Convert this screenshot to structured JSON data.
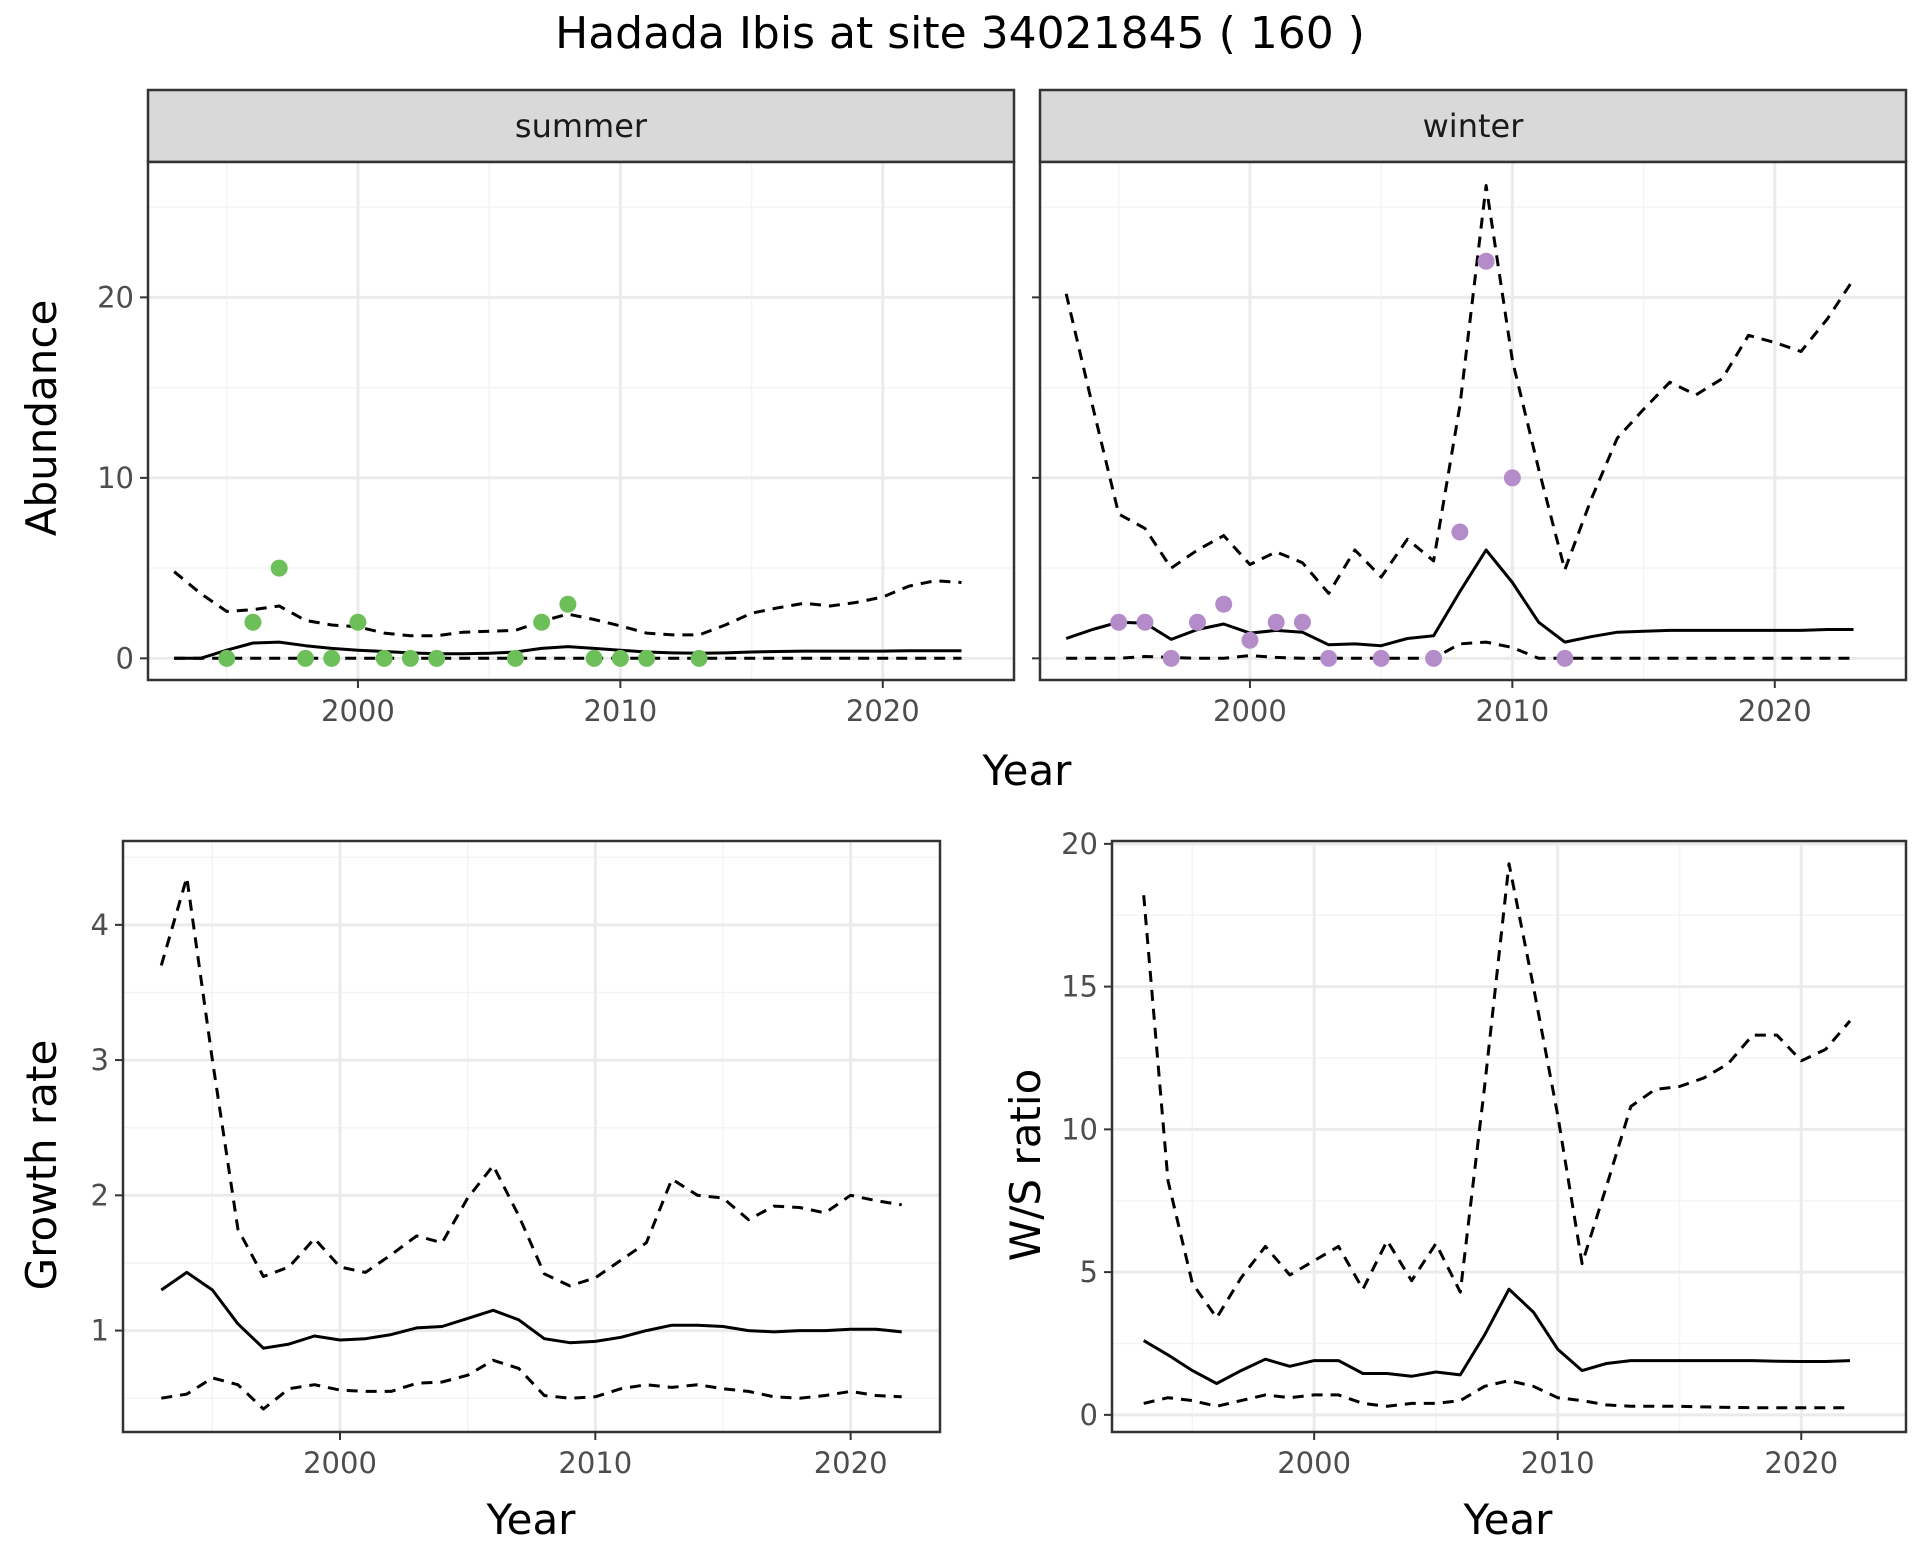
{
  "title": "Hadada Ibis at site 34021845 ( 160 )",
  "colors": {
    "summer_points": "#6dbf5a",
    "winter_points": "#b58cca",
    "lines": "#000000",
    "panel_border": "#333333",
    "strip_fill": "#d9d9d9",
    "grid_major": "#ebebeb",
    "grid_minor": "#f4f4f4"
  },
  "chart_data": [
    {
      "type": "line",
      "id": "abundance",
      "facet_label_summer": "summer",
      "facet_label_winter": "winter",
      "xlabel": "Year",
      "ylabel": "Abundance",
      "xlim": [
        1992,
        2025
      ],
      "ylim": [
        -1.2,
        27.5
      ],
      "xticks": [
        2000,
        2010,
        2020
      ],
      "yticks": [
        0,
        10,
        20
      ],
      "grid": true,
      "facets": [
        {
          "name": "summer",
          "points_color": "summer_points",
          "points": {
            "x": [
              1995,
              1996,
              1997,
              1998,
              1999,
              2000,
              2001,
              2002,
              2003,
              2006,
              2007,
              2008,
              2009,
              2010,
              2011,
              2013
            ],
            "y": [
              0,
              2,
              5,
              0,
              0,
              2,
              0,
              0,
              0,
              0,
              2,
              3,
              0,
              0,
              0,
              0
            ]
          },
          "series": [
            {
              "style": "solid",
              "x": [
                1993,
                1994,
                1995,
                1996,
                1997,
                1998,
                1999,
                2000,
                2001,
                2002,
                2003,
                2004,
                2005,
                2006,
                2007,
                2008,
                2009,
                2010,
                2011,
                2012,
                2013,
                2014,
                2015,
                2016,
                2017,
                2018,
                2019,
                2020,
                2021,
                2022,
                2023
              ],
              "y": [
                0.0,
                0.0,
                0.45,
                0.85,
                0.9,
                0.7,
                0.55,
                0.45,
                0.38,
                0.3,
                0.25,
                0.25,
                0.28,
                0.35,
                0.55,
                0.65,
                0.55,
                0.45,
                0.35,
                0.3,
                0.28,
                0.3,
                0.35,
                0.38,
                0.4,
                0.4,
                0.4,
                0.4,
                0.42,
                0.42,
                0.42
              ]
            },
            {
              "style": "dashed",
              "x": [
                1993,
                1994,
                1995,
                1996,
                1997,
                1998,
                1999,
                2000,
                2001,
                2002,
                2003,
                2004,
                2005,
                2006,
                2007,
                2008,
                2009,
                2010,
                2011,
                2012,
                2013,
                2014,
                2015,
                2016,
                2017,
                2018,
                2019,
                2020,
                2021,
                2022,
                2023
              ],
              "y": [
                4.8,
                3.6,
                2.6,
                2.7,
                2.9,
                2.1,
                1.85,
                1.75,
                1.4,
                1.25,
                1.25,
                1.45,
                1.5,
                1.55,
                2.05,
                2.45,
                2.15,
                1.8,
                1.4,
                1.3,
                1.3,
                1.85,
                2.5,
                2.8,
                3.05,
                2.9,
                3.1,
                3.4,
                4.0,
                4.3,
                4.2
              ]
            },
            {
              "style": "dashed",
              "x": [
                1993,
                2023
              ],
              "y": [
                0,
                0
              ]
            }
          ]
        },
        {
          "name": "winter",
          "points_color": "winter_points",
          "points": {
            "x": [
              1995,
              1996,
              1997,
              1998,
              1999,
              2000,
              2001,
              2002,
              2003,
              2005,
              2007,
              2008,
              2009,
              2010,
              2012
            ],
            "y": [
              2,
              2,
              0,
              2,
              3,
              1,
              2,
              2,
              0,
              0,
              0,
              7,
              22,
              10,
              0
            ]
          },
          "series": [
            {
              "style": "solid",
              "x": [
                1993,
                1994,
                1995,
                1996,
                1997,
                1998,
                1999,
                2000,
                2001,
                2002,
                2003,
                2004,
                2005,
                2006,
                2007,
                2008,
                2009,
                2010,
                2011,
                2012,
                2013,
                2014,
                2015,
                2016,
                2017,
                2018,
                2019,
                2020,
                2021,
                2022,
                2023
              ],
              "y": [
                1.1,
                1.6,
                2.0,
                1.95,
                1.05,
                1.6,
                1.9,
                1.4,
                1.55,
                1.45,
                0.75,
                0.8,
                0.7,
                1.1,
                1.25,
                3.7,
                6.0,
                4.2,
                2.0,
                0.9,
                1.2,
                1.45,
                1.5,
                1.55,
                1.55,
                1.55,
                1.55,
                1.55,
                1.55,
                1.6,
                1.6
              ]
            },
            {
              "style": "dashed",
              "x": [
                1993,
                1994,
                1995,
                1996,
                1997,
                1998,
                1999,
                2000,
                2001,
                2002,
                2003,
                2004,
                2005,
                2006,
                2007,
                2008,
                2009,
                2010,
                2011,
                2012,
                2013,
                2014,
                2015,
                2016,
                2017,
                2018,
                2019,
                2020,
                2021,
                2022,
                2023
              ],
              "y": [
                20.2,
                14.0,
                8.0,
                7.2,
                5.0,
                6.0,
                6.8,
                5.2,
                5.9,
                5.3,
                3.6,
                6.0,
                4.5,
                6.6,
                5.4,
                14.0,
                26.2,
                16.5,
                10.5,
                4.9,
                8.8,
                12.2,
                13.8,
                15.3,
                14.6,
                15.5,
                17.9,
                17.5,
                17.0,
                18.8,
                21.0
              ]
            },
            {
              "style": "dashed",
              "x": [
                1993,
                1994,
                1995,
                1996,
                1997,
                1998,
                1999,
                2000,
                2001,
                2002,
                2003,
                2004,
                2005,
                2006,
                2007,
                2008,
                2009,
                2010,
                2011,
                2012,
                2013,
                2014,
                2015,
                2016,
                2017,
                2018,
                2019,
                2020,
                2021,
                2022,
                2023
              ],
              "y": [
                0,
                0,
                0,
                0.1,
                0.05,
                0,
                0,
                0.15,
                0.05,
                0,
                0,
                0,
                0,
                0,
                0,
                0.8,
                0.9,
                0.6,
                0,
                0,
                0,
                0,
                0,
                0,
                0,
                0,
                0,
                0,
                0,
                0,
                0
              ]
            }
          ]
        }
      ]
    },
    {
      "type": "line",
      "id": "growth",
      "xlabel": "Year",
      "ylabel": "Growth rate",
      "xlim": [
        1991.5,
        2023.5
      ],
      "ylim": [
        0.25,
        4.62
      ],
      "xticks": [
        2000,
        2010,
        2020
      ],
      "yticks": [
        1,
        2,
        3,
        4
      ],
      "grid": true,
      "series": [
        {
          "style": "solid",
          "x": [
            1993,
            1994,
            1995,
            1996,
            1997,
            1998,
            1999,
            2000,
            2001,
            2002,
            2003,
            2004,
            2005,
            2006,
            2007,
            2008,
            2009,
            2010,
            2011,
            2012,
            2013,
            2014,
            2015,
            2016,
            2017,
            2018,
            2019,
            2020,
            2021,
            2022
          ],
          "y": [
            1.3,
            1.43,
            1.3,
            1.05,
            0.87,
            0.9,
            0.96,
            0.93,
            0.94,
            0.97,
            1.02,
            1.03,
            1.09,
            1.15,
            1.08,
            0.94,
            0.91,
            0.92,
            0.95,
            1.0,
            1.04,
            1.04,
            1.03,
            1.0,
            0.99,
            1.0,
            1.0,
            1.01,
            1.01,
            0.99
          ]
        },
        {
          "style": "dashed",
          "x": [
            1993,
            1994,
            1995,
            1996,
            1997,
            1998,
            1999,
            2000,
            2001,
            2002,
            2003,
            2004,
            2005,
            2006,
            2007,
            2008,
            2009,
            2010,
            2011,
            2012,
            2013,
            2014,
            2015,
            2016,
            2017,
            2018,
            2019,
            2020,
            2021,
            2022
          ],
          "y": [
            3.7,
            4.35,
            3.0,
            1.75,
            1.4,
            1.47,
            1.68,
            1.47,
            1.43,
            1.56,
            1.7,
            1.65,
            1.98,
            2.22,
            1.85,
            1.42,
            1.33,
            1.39,
            1.52,
            1.65,
            2.12,
            2.0,
            1.98,
            1.82,
            1.92,
            1.91,
            1.87,
            2.0,
            1.96,
            1.93
          ]
        },
        {
          "style": "dashed",
          "x": [
            1993,
            1994,
            1995,
            1996,
            1997,
            1998,
            1999,
            2000,
            2001,
            2002,
            2003,
            2004,
            2005,
            2006,
            2007,
            2008,
            2009,
            2010,
            2011,
            2012,
            2013,
            2014,
            2015,
            2016,
            2017,
            2018,
            2019,
            2020,
            2021,
            2022
          ],
          "y": [
            0.5,
            0.53,
            0.65,
            0.6,
            0.42,
            0.57,
            0.6,
            0.56,
            0.55,
            0.55,
            0.61,
            0.62,
            0.67,
            0.78,
            0.72,
            0.52,
            0.5,
            0.51,
            0.57,
            0.6,
            0.58,
            0.6,
            0.57,
            0.55,
            0.51,
            0.5,
            0.52,
            0.55,
            0.52,
            0.51
          ]
        }
      ]
    },
    {
      "type": "line",
      "id": "ws_ratio",
      "xlabel": "Year",
      "ylabel": "W/S ratio",
      "xlim": [
        1991.7,
        2024.3
      ],
      "ylim": [
        -0.6,
        20.1
      ],
      "xticks": [
        2000,
        2010,
        2020
      ],
      "yticks": [
        0,
        5,
        10,
        15,
        20
      ],
      "grid": true,
      "series": [
        {
          "style": "solid",
          "x": [
            1993,
            1994,
            1995,
            1996,
            1997,
            1998,
            1999,
            2000,
            2001,
            2002,
            2003,
            2004,
            2005,
            2006,
            2007,
            2008,
            2009,
            2010,
            2011,
            2012,
            2013,
            2014,
            2015,
            2016,
            2017,
            2018,
            2019,
            2020,
            2021,
            2022
          ],
          "y": [
            2.6,
            2.1,
            1.55,
            1.1,
            1.55,
            1.95,
            1.7,
            1.9,
            1.9,
            1.45,
            1.45,
            1.35,
            1.5,
            1.4,
            2.8,
            4.4,
            3.6,
            2.3,
            1.55,
            1.8,
            1.9,
            1.9,
            1.9,
            1.9,
            1.9,
            1.9,
            1.88,
            1.87,
            1.87,
            1.9
          ]
        },
        {
          "style": "dashed",
          "x": [
            1993,
            1994,
            1995,
            1996,
            1997,
            1998,
            1999,
            2000,
            2001,
            2002,
            2003,
            2004,
            2005,
            2006,
            2007,
            2008,
            2009,
            2010,
            2011,
            2012,
            2013,
            2014,
            2015,
            2016,
            2017,
            2018,
            2019,
            2020,
            2021,
            2022
          ],
          "y": [
            18.2,
            8.2,
            4.6,
            3.4,
            4.8,
            5.9,
            4.9,
            5.4,
            5.9,
            4.4,
            6.1,
            4.7,
            6.0,
            4.3,
            11.5,
            19.3,
            15.0,
            10.5,
            5.3,
            8.0,
            10.8,
            11.4,
            11.5,
            11.8,
            12.3,
            13.3,
            13.3,
            12.4,
            12.8,
            13.8
          ]
        },
        {
          "style": "dashed",
          "x": [
            1993,
            1994,
            1995,
            1996,
            1997,
            1998,
            1999,
            2000,
            2001,
            2002,
            2003,
            2004,
            2005,
            2006,
            2007,
            2008,
            2009,
            2010,
            2011,
            2012,
            2013,
            2014,
            2015,
            2016,
            2017,
            2018,
            2019,
            2020,
            2021,
            2022
          ],
          "y": [
            0.4,
            0.6,
            0.5,
            0.3,
            0.5,
            0.7,
            0.6,
            0.7,
            0.7,
            0.4,
            0.3,
            0.4,
            0.4,
            0.5,
            1.0,
            1.2,
            1.0,
            0.6,
            0.5,
            0.35,
            0.3,
            0.3,
            0.3,
            0.28,
            0.26,
            0.25,
            0.25,
            0.25,
            0.25,
            0.25
          ]
        }
      ]
    }
  ]
}
